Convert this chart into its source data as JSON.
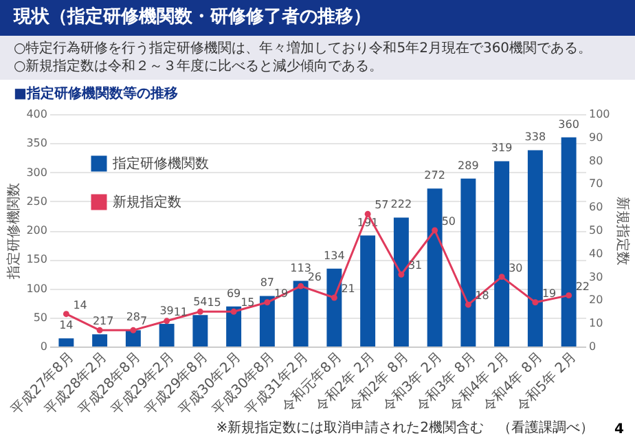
{
  "chart_data": {
    "type": "bar",
    "title": "現状（指定研修機関数・研修修了者の推移）",
    "subtitle": "○特定行為研修を行う指定研修機関は、年々増加しており令和5年2月現在で360機関である。\n○新規指定数は令和２～３年度に比べると減少傾向である。",
    "annotations": [
      "■指定研修機関数等の推移",
      "※新規指定数には取消申請された2機関含む",
      "（看護課調べ）",
      "4"
    ],
    "categories": [
      "平成27年8月",
      "平成28年2月",
      "平成28年8月",
      "平成29年2月",
      "平成29年8月",
      "平成30年2月",
      "平成30年8月",
      "平成31年2月",
      "令和元年8月",
      "令和2年 2月",
      "令和2年 8月",
      "令和3年 2月",
      "令和3年 8月",
      "令和4年 2月",
      "令和4年 8月",
      "令和5年 2月"
    ],
    "series": [
      {
        "name": "指定研修機関数",
        "color": "#0b55a8",
        "values": [
          14,
          21,
          28,
          39,
          54,
          69,
          87,
          113,
          134,
          191,
          222,
          272,
          289,
          319,
          338,
          360
        ]
      },
      {
        "name": "新規指定数",
        "type": "line",
        "axis": "y2",
        "color": "#e03a5c",
        "values": [
          14,
          7,
          7,
          11,
          15,
          15,
          19,
          26,
          21,
          57,
          31,
          50,
          18,
          30,
          19,
          22
        ]
      }
    ],
    "ylabel": "指定研修機関数",
    "y2label": "新規指定数",
    "ylim": [
      0,
      400
    ],
    "yticks": [
      0,
      50,
      100,
      150,
      200,
      250,
      300,
      350,
      400
    ],
    "y2lim": [
      0,
      100
    ],
    "y2ticks": [
      0,
      10,
      20,
      30,
      40,
      50,
      60,
      70,
      80,
      90,
      100
    ],
    "grid": "y",
    "legend": "top left",
    "marker": "circle",
    "line_style": "solid",
    "data_labels": true
  }
}
